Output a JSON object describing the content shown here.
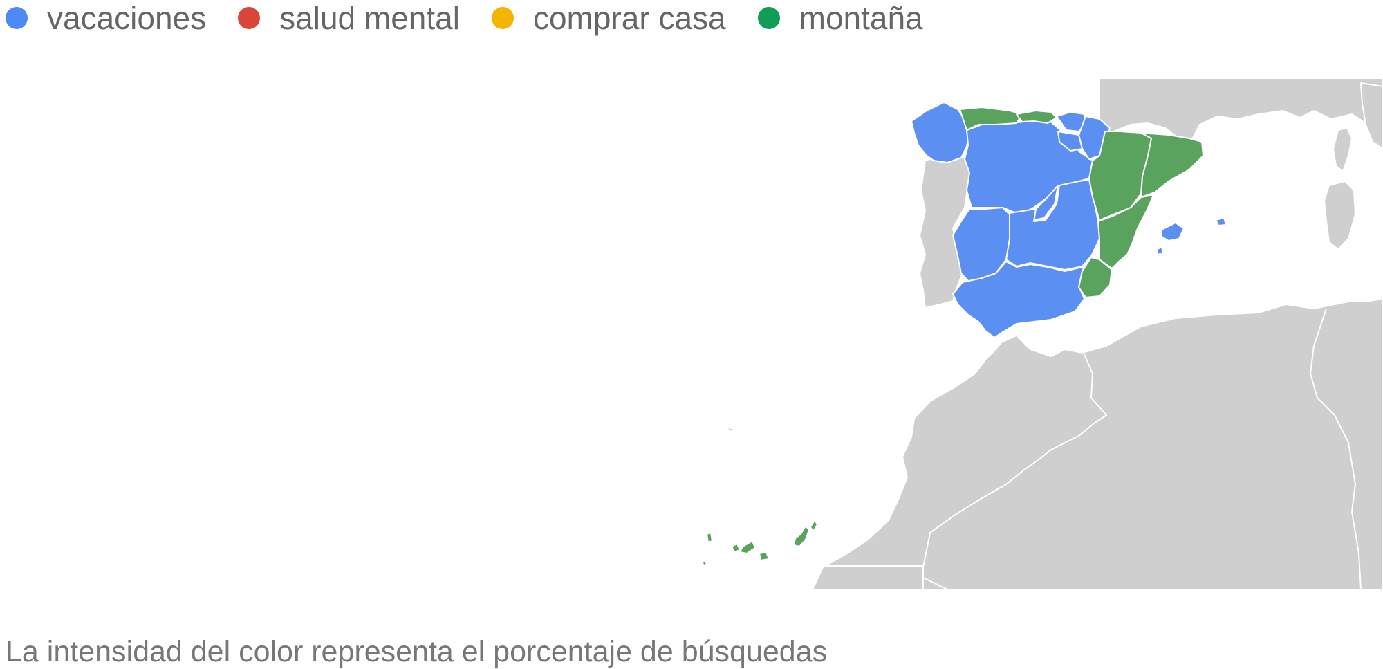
{
  "legend": [
    {
      "label": "vacaciones",
      "color": "#4f89f7"
    },
    {
      "label": "salud mental",
      "color": "#db4437"
    },
    {
      "label": "comprar casa",
      "color": "#f4b400"
    },
    {
      "label": "montaña",
      "color": "#0f9d58"
    }
  ],
  "map": {
    "other_land_color": "#cfcfcf",
    "region_colors": {
      "vacaciones": "#5b8ff2",
      "montaña": "#5aa35f"
    },
    "regions": [
      {
        "name": "Galicia",
        "topic": "vacaciones"
      },
      {
        "name": "Asturias",
        "topic": "montaña"
      },
      {
        "name": "Cantabria",
        "topic": "montaña"
      },
      {
        "name": "País Vasco",
        "topic": "vacaciones"
      },
      {
        "name": "Navarra",
        "topic": "vacaciones"
      },
      {
        "name": "La Rioja",
        "topic": "vacaciones"
      },
      {
        "name": "Castilla y León",
        "topic": "vacaciones"
      },
      {
        "name": "Aragón",
        "topic": "montaña"
      },
      {
        "name": "Cataluña",
        "topic": "montaña"
      },
      {
        "name": "Comunidad de Madrid",
        "topic": "vacaciones"
      },
      {
        "name": "Castilla-La Mancha",
        "topic": "vacaciones"
      },
      {
        "name": "Extremadura",
        "topic": "vacaciones"
      },
      {
        "name": "Comunidad Valenciana",
        "topic": "montaña"
      },
      {
        "name": "Región de Murcia",
        "topic": "montaña"
      },
      {
        "name": "Andalucía",
        "topic": "vacaciones"
      },
      {
        "name": "Islas Baleares",
        "topic": "vacaciones"
      },
      {
        "name": "Canarias",
        "topic": "montaña"
      }
    ]
  },
  "caption": "La intensidad del color representa el porcentaje de búsquedas"
}
